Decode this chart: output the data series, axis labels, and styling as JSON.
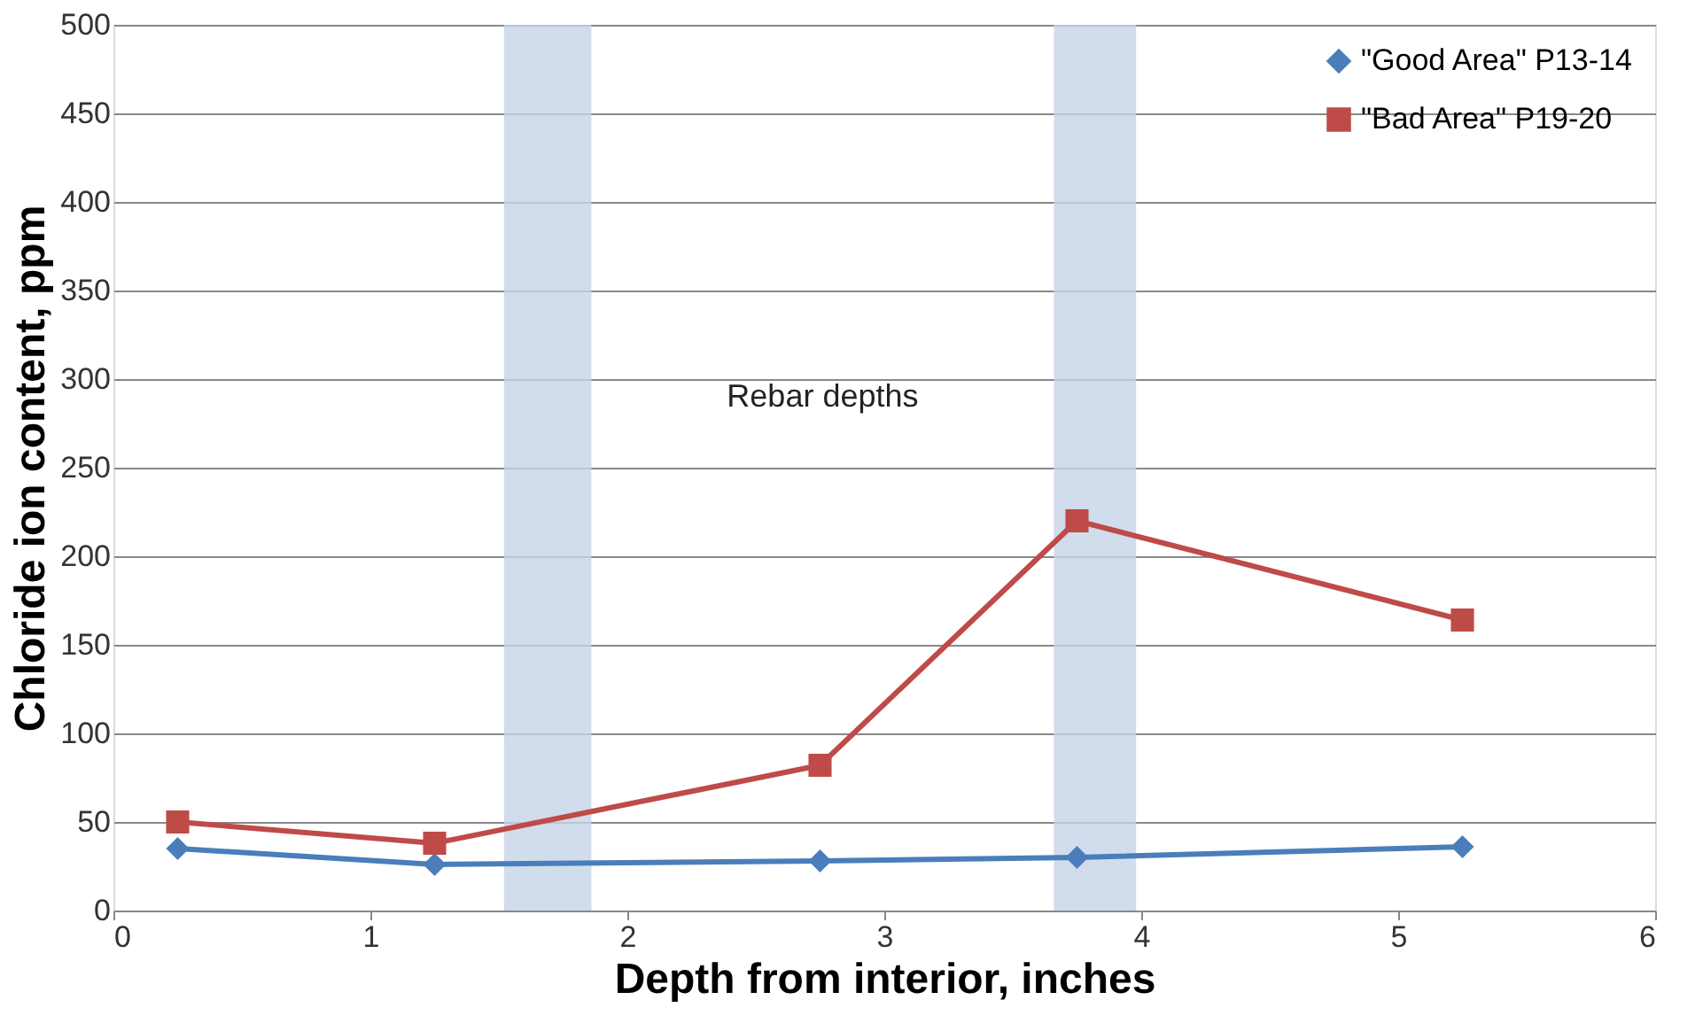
{
  "chart_data": {
    "type": "line",
    "xlabel": "Depth from interior, inches",
    "ylabel": "Chloride ion content, ppm",
    "x": [
      0.25,
      1.25,
      2.75,
      3.75,
      5.25
    ],
    "series": [
      {
        "name": "\"Good Area\" P13-14",
        "color": "#4a7ebb",
        "marker": "diamond",
        "values": [
          35,
          26,
          28,
          30,
          36
        ]
      },
      {
        "name": "\"Bad Area\" P19-20",
        "color": "#be4b48",
        "marker": "square",
        "values": [
          50,
          38,
          82,
          220,
          164
        ]
      }
    ],
    "bands": [
      {
        "axis": "x",
        "from": 1.52,
        "to": 1.86,
        "color": "#c6d5e8"
      },
      {
        "axis": "x",
        "from": 3.66,
        "to": 3.98,
        "color": "#c6d5e8"
      }
    ],
    "annotations": [
      "Rebar depths"
    ],
    "xlim": [
      0,
      6
    ],
    "xticks": [
      0,
      1,
      2,
      3,
      4,
      5,
      6
    ],
    "ylim": [
      0,
      500
    ],
    "yticks": [
      0,
      50,
      100,
      150,
      200,
      250,
      300,
      350,
      400,
      450,
      500
    ],
    "grid": "y",
    "legend": "top right",
    "line_style": "solid"
  }
}
